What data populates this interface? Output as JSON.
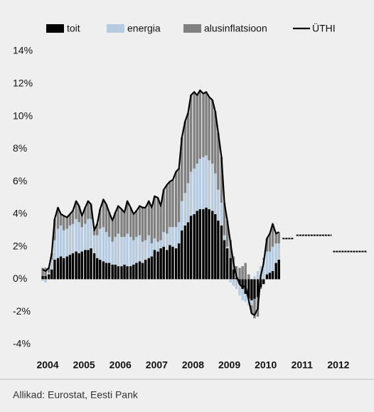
{
  "chart_data": {
    "type": "stacked-bar-line",
    "source": "Allikad: Eurostat, Eesti Pank",
    "x": [
      2004.0,
      2004.08,
      2004.17,
      2004.25,
      2004.33,
      2004.42,
      2004.5,
      2004.58,
      2004.67,
      2004.75,
      2004.83,
      2004.92,
      2005.0,
      2005.08,
      2005.17,
      2005.25,
      2005.33,
      2005.42,
      2005.5,
      2005.58,
      2005.67,
      2005.75,
      2005.83,
      2005.92,
      2006.0,
      2006.08,
      2006.17,
      2006.25,
      2006.33,
      2006.42,
      2006.5,
      2006.58,
      2006.67,
      2006.75,
      2006.83,
      2006.92,
      2007.0,
      2007.08,
      2007.17,
      2007.25,
      2007.33,
      2007.42,
      2007.5,
      2007.58,
      2007.67,
      2007.75,
      2007.83,
      2007.92,
      2008.0,
      2008.08,
      2008.17,
      2008.25,
      2008.33,
      2008.42,
      2008.5,
      2008.58,
      2008.67,
      2008.75,
      2008.83,
      2008.92,
      2009.0,
      2009.08,
      2009.17,
      2009.25,
      2009.33,
      2009.42,
      2009.5,
      2009.58,
      2009.67,
      2009.75,
      2009.83,
      2009.92,
      2010.0,
      2010.08,
      2010.17,
      2010.25,
      2010.33,
      2010.42,
      2010.5
    ],
    "series": [
      {
        "name": "toit",
        "color": "#000000",
        "kind": "bar",
        "values": [
          0.2,
          0.2,
          0.3,
          0.6,
          1.2,
          1.3,
          1.4,
          1.3,
          1.4,
          1.5,
          1.6,
          1.7,
          1.6,
          1.7,
          1.8,
          1.8,
          1.9,
          1.6,
          1.3,
          1.2,
          1.1,
          1.0,
          1.0,
          0.9,
          0.9,
          0.8,
          0.8,
          0.9,
          0.8,
          0.8,
          0.9,
          1.0,
          1.1,
          1.0,
          1.2,
          1.3,
          1.4,
          1.8,
          1.7,
          1.9,
          2.0,
          1.8,
          2.1,
          2.0,
          1.9,
          2.2,
          3.0,
          3.3,
          3.5,
          3.9,
          4.0,
          4.2,
          4.3,
          4.3,
          4.4,
          4.3,
          4.2,
          4.0,
          3.6,
          3.3,
          2.4,
          1.9,
          1.3,
          0.6,
          0.1,
          -0.3,
          -0.6,
          -0.9,
          -1.2,
          -1.3,
          -1.2,
          -1.1,
          -0.5,
          -0.3,
          0.3,
          0.4,
          0.5,
          1.0,
          1.2
        ]
      },
      {
        "name": "energia",
        "color": "#b7cbe0",
        "kind": "bar",
        "values": [
          -0.1,
          -0.2,
          0.1,
          0.6,
          1.2,
          1.8,
          1.9,
          1.7,
          1.7,
          1.8,
          1.8,
          2.0,
          1.9,
          1.5,
          1.6,
          1.9,
          1.8,
          1.1,
          1.4,
          1.9,
          2.1,
          1.9,
          1.6,
          1.4,
          1.7,
          2.0,
          1.8,
          1.7,
          2.0,
          1.8,
          1.5,
          1.6,
          1.6,
          1.3,
          1.2,
          1.4,
          0.8,
          0.7,
          0.6,
          0.5,
          0.9,
          1.0,
          1.1,
          1.2,
          1.3,
          1.3,
          1.8,
          2.0,
          2.4,
          2.7,
          2.8,
          2.9,
          3.1,
          3.2,
          3.2,
          3.0,
          2.9,
          2.5,
          1.9,
          1.4,
          0.3,
          0.1,
          -0.2,
          -0.4,
          -0.6,
          -0.7,
          -0.7,
          -0.5,
          -0.4,
          -0.3,
          0.2,
          0.5,
          0.8,
          1.2,
          1.4,
          1.3,
          1.5,
          1.2,
          1.0
        ]
      },
      {
        "name": "alusinflatsioon",
        "color": "#808080",
        "kind": "bar",
        "values": [
          0.5,
          0.5,
          0.3,
          0.4,
          1.3,
          1.3,
          0.7,
          0.9,
          0.7,
          0.7,
          0.8,
          1.1,
          1.0,
          0.7,
          1.0,
          1.1,
          0.9,
          0.3,
          0.7,
          1.2,
          1.7,
          1.7,
          1.5,
          1.3,
          1.5,
          1.7,
          1.7,
          1.5,
          2.0,
          1.8,
          1.6,
          1.6,
          1.8,
          2.1,
          2.0,
          2.1,
          2.2,
          2.6,
          2.7,
          2.1,
          2.6,
          3.0,
          2.8,
          2.9,
          3.4,
          3.3,
          3.9,
          4.4,
          4.3,
          4.7,
          4.7,
          4.2,
          4.2,
          3.9,
          3.9,
          3.9,
          3.9,
          3.8,
          3.5,
          2.8,
          2.0,
          1.6,
          1.1,
          0.8,
          0.7,
          0.7,
          0.8,
          1.0,
          0.3,
          -0.5,
          -1.2,
          -1.2,
          -0.1,
          0.1,
          0.8,
          1.1,
          1.4,
          0.6,
          0.7
        ]
      },
      {
        "name": "ÜTHI",
        "color": "#000000",
        "kind": "line",
        "values": [
          0.6,
          0.5,
          0.7,
          1.6,
          3.7,
          4.4,
          4.0,
          3.9,
          3.8,
          4.0,
          4.2,
          4.8,
          4.5,
          3.9,
          4.4,
          4.8,
          4.6,
          3.0,
          3.4,
          4.3,
          4.9,
          4.6,
          4.1,
          3.6,
          4.1,
          4.5,
          4.3,
          4.1,
          4.8,
          4.4,
          4.0,
          4.2,
          4.5,
          4.4,
          4.4,
          4.8,
          4.4,
          5.1,
          5.0,
          4.5,
          5.5,
          5.8,
          6.0,
          6.1,
          6.6,
          6.8,
          8.7,
          9.7,
          10.2,
          11.3,
          11.5,
          11.3,
          11.6,
          11.4,
          11.5,
          11.2,
          11.0,
          10.3,
          9.0,
          7.5,
          4.7,
          3.6,
          2.2,
          1.0,
          0.2,
          -0.3,
          -0.5,
          -0.4,
          -1.3,
          -2.1,
          -2.2,
          -1.8,
          0.2,
          1.0,
          2.5,
          2.8,
          3.4,
          2.8,
          2.9
        ]
      }
    ],
    "forecasts": [
      {
        "x": [
          2010.6,
          2010.9
        ],
        "value": 2.5
      },
      {
        "x": [
          2010.98,
          2011.95
        ],
        "value": 2.7
      },
      {
        "x": [
          2011.99,
          2012.93
        ],
        "value": 1.7
      }
    ],
    "xlim": [
      2003.96,
      2013.0
    ],
    "xticks": [
      2004,
      2005,
      2006,
      2007,
      2008,
      2009,
      2010,
      2011,
      2012
    ],
    "ylim": [
      -4.5,
      14.5
    ],
    "yticks": [
      {
        "value": -4,
        "label": "-4%"
      },
      {
        "value": -2,
        "label": "-2%"
      },
      {
        "value": 0,
        "label": "0%"
      },
      {
        "value": 2,
        "label": "2%"
      },
      {
        "value": 4,
        "label": "4%"
      },
      {
        "value": 6,
        "label": "6%"
      },
      {
        "value": 8,
        "label": "8%"
      },
      {
        "value": 10,
        "label": "10%"
      },
      {
        "value": 12,
        "label": "12%"
      },
      {
        "value": 14,
        "label": "14%"
      }
    ],
    "grid": false,
    "legend": "top"
  }
}
